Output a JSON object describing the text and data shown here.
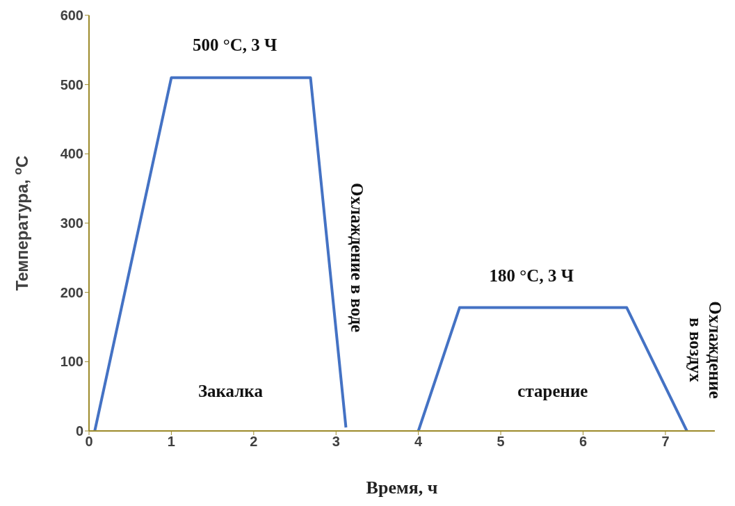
{
  "chart_data": {
    "type": "line",
    "xlabel": "Время, ч",
    "ylabel": "Температура, $^{o}$C",
    "xlim": [
      0,
      7.6
    ],
    "xticks": [
      0,
      1,
      2,
      3,
      4,
      5,
      6,
      7
    ],
    "ylim": [
      0,
      600
    ],
    "yticks": [
      0,
      100,
      200,
      300,
      400,
      500,
      600
    ],
    "grid": false,
    "legend": false,
    "marker": "none",
    "line_style": "solid",
    "series": [
      {
        "color": "#4472c4",
        "x": [
          0.07,
          1,
          2.69,
          3.12
        ],
        "values": [
          0,
          510,
          510,
          5
        ]
      },
      {
        "color": "#4472c4",
        "x": [
          4,
          4.5,
          6.53,
          7.26
        ],
        "values": [
          0,
          178,
          178,
          0
        ]
      }
    ],
    "annotations": [
      "500 °C, 3 Ч",
      "Закалка",
      "Охлаждение в воде",
      "180 °C, 3 Ч",
      "старение",
      "Охлаждение\nв воздух"
    ]
  }
}
